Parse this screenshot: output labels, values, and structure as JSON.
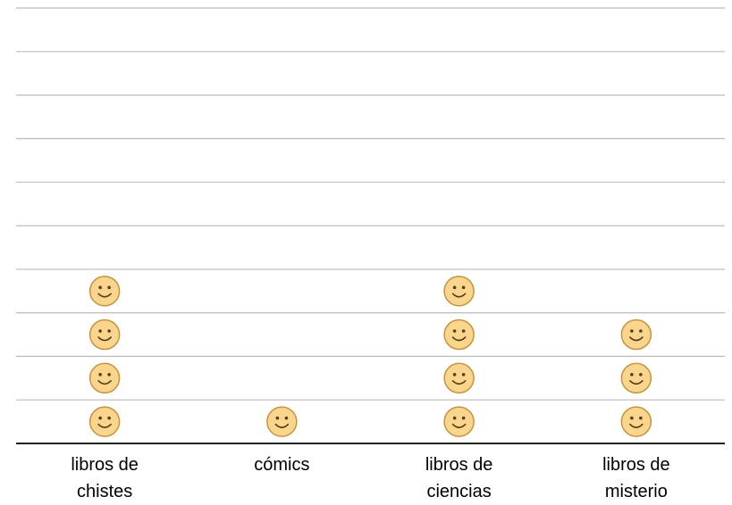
{
  "chart_data": {
    "type": "pictograph",
    "categories": [
      "libros de chistes",
      "cómics",
      "libros de ciencias",
      "libros de misterio"
    ],
    "values": [
      4,
      1,
      4,
      3
    ],
    "color": "#f9d58e",
    "ylim": [
      0,
      10
    ],
    "yticks": [
      0,
      1,
      2,
      3,
      4,
      5,
      6,
      7,
      8,
      9,
      10
    ],
    "grid": true
  }
}
